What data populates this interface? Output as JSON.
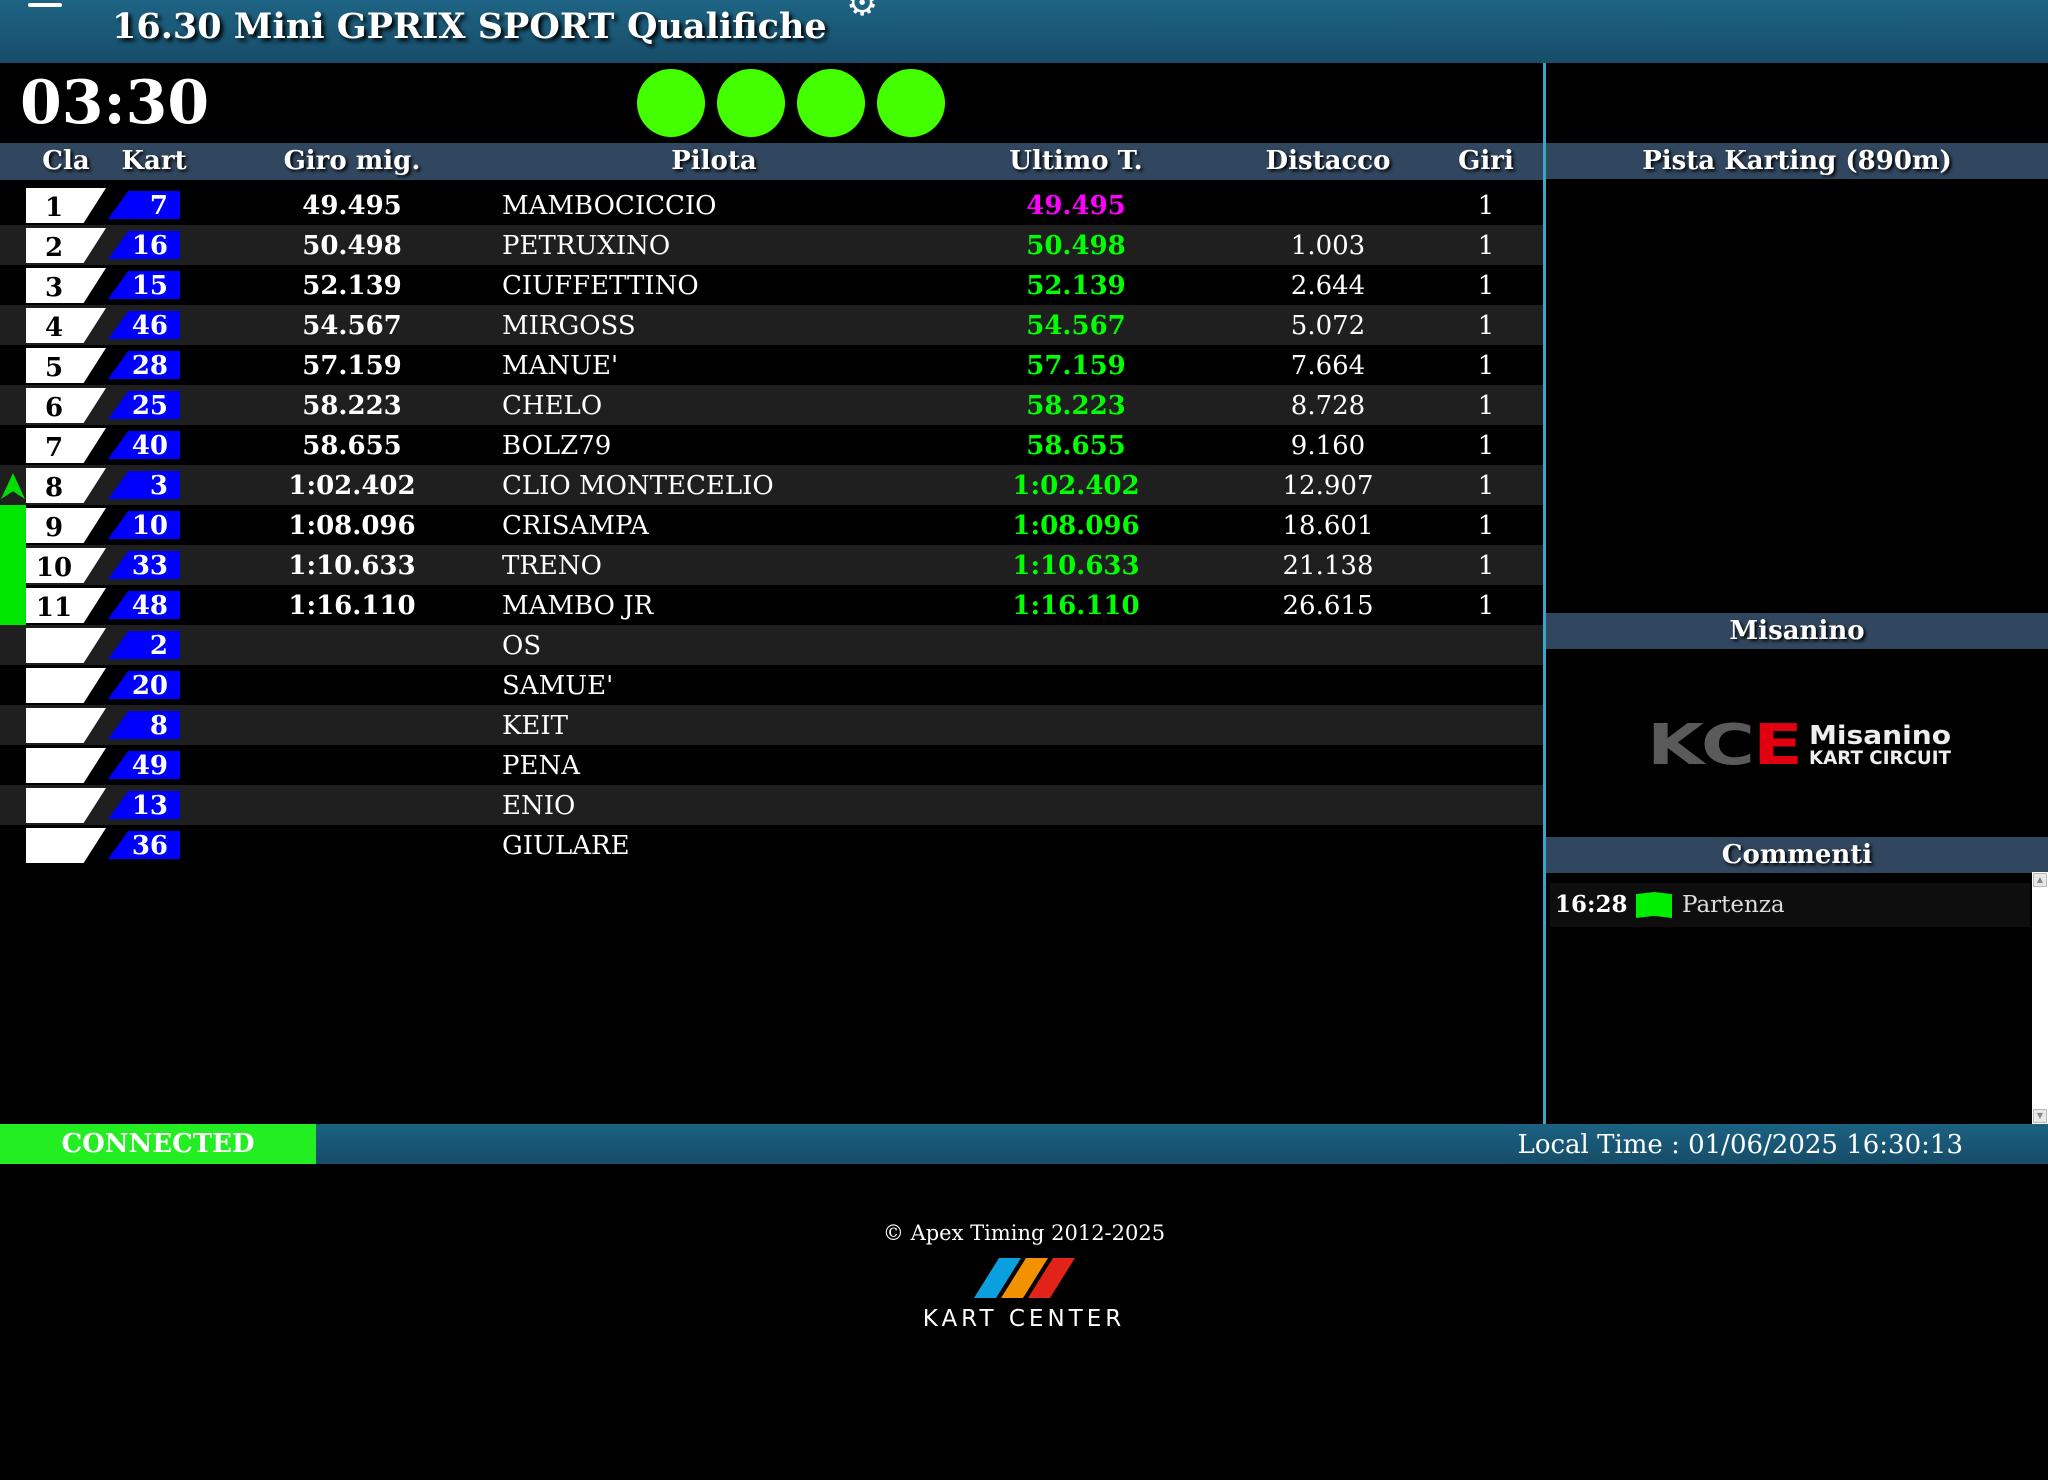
{
  "header": {
    "title": "16.30 Mini GPRIX SPORT",
    "session": "Qualifiche",
    "menu_icon": "hamburger-icon",
    "settings_icon": "gear-icon"
  },
  "timer": "03:30",
  "lights": {
    "count": 4,
    "color": "#44ff00"
  },
  "table": {
    "columns": {
      "cla": "Cla",
      "kart": "Kart",
      "best": "Giro mig.",
      "driver": "Pilota",
      "last": "Ultimo T.",
      "gap": "Distacco",
      "laps": "Giri"
    },
    "rows": [
      {
        "pos": "1",
        "kart": "7",
        "best": "49.495",
        "driver": "MAMBOCICCIO",
        "last": "49.495",
        "last_color": "#ff00ff",
        "gap": "",
        "laps": "1",
        "marker": ""
      },
      {
        "pos": "2",
        "kart": "16",
        "best": "50.498",
        "driver": "PETRUXINO",
        "last": "50.498",
        "last_color": "#00ff00",
        "gap": "1.003",
        "laps": "1",
        "marker": ""
      },
      {
        "pos": "3",
        "kart": "15",
        "best": "52.139",
        "driver": "CIUFFETTINO",
        "last": "52.139",
        "last_color": "#00ff00",
        "gap": "2.644",
        "laps": "1",
        "marker": ""
      },
      {
        "pos": "4",
        "kart": "46",
        "best": "54.567",
        "driver": "MIRGOSS",
        "last": "54.567",
        "last_color": "#00ff00",
        "gap": "5.072",
        "laps": "1",
        "marker": ""
      },
      {
        "pos": "5",
        "kart": "28",
        "best": "57.159",
        "driver": "MANUE'",
        "last": "57.159",
        "last_color": "#00ff00",
        "gap": "7.664",
        "laps": "1",
        "marker": ""
      },
      {
        "pos": "6",
        "kart": "25",
        "best": "58.223",
        "driver": "CHELO",
        "last": "58.223",
        "last_color": "#00ff00",
        "gap": "8.728",
        "laps": "1",
        "marker": ""
      },
      {
        "pos": "7",
        "kart": "40",
        "best": "58.655",
        "driver": "BOLZ79",
        "last": "58.655",
        "last_color": "#00ff00",
        "gap": "9.160",
        "laps": "1",
        "marker": ""
      },
      {
        "pos": "8",
        "kart": "3",
        "best": "1:02.402",
        "driver": "CLIO MONTECELIO",
        "last": "1:02.402",
        "last_color": "#00ff00",
        "gap": "12.907",
        "laps": "1",
        "marker": "up-arrow"
      },
      {
        "pos": "9",
        "kart": "10",
        "best": "1:08.096",
        "driver": "CRISAMPA",
        "last": "1:08.096",
        "last_color": "#00ff00",
        "gap": "18.601",
        "laps": "1",
        "marker": "green-bar"
      },
      {
        "pos": "10",
        "kart": "33",
        "best": "1:10.633",
        "driver": "TRENO",
        "last": "1:10.633",
        "last_color": "#00ff00",
        "gap": "21.138",
        "laps": "1",
        "marker": "green-bar"
      },
      {
        "pos": "11",
        "kart": "48",
        "best": "1:16.110",
        "driver": "MAMBO JR",
        "last": "1:16.110",
        "last_color": "#00ff00",
        "gap": "26.615",
        "laps": "1",
        "marker": "green-bar"
      },
      {
        "pos": "",
        "kart": "2",
        "best": "",
        "driver": "OS",
        "last": "",
        "last_color": "#00ff00",
        "gap": "",
        "laps": "",
        "marker": ""
      },
      {
        "pos": "",
        "kart": "20",
        "best": "",
        "driver": "SAMUE'",
        "last": "",
        "last_color": "#00ff00",
        "gap": "",
        "laps": "",
        "marker": ""
      },
      {
        "pos": "",
        "kart": "8",
        "best": "",
        "driver": "KEIT",
        "last": "",
        "last_color": "#00ff00",
        "gap": "",
        "laps": "",
        "marker": ""
      },
      {
        "pos": "",
        "kart": "49",
        "best": "",
        "driver": "PENA",
        "last": "",
        "last_color": "#00ff00",
        "gap": "",
        "laps": "",
        "marker": ""
      },
      {
        "pos": "",
        "kart": "13",
        "best": "",
        "driver": "ENIO",
        "last": "",
        "last_color": "#00ff00",
        "gap": "",
        "laps": "",
        "marker": ""
      },
      {
        "pos": "",
        "kart": "36",
        "best": "",
        "driver": "GIULARE",
        "last": "",
        "last_color": "#00ff00",
        "gap": "",
        "laps": "",
        "marker": ""
      }
    ]
  },
  "right_panel": {
    "track_title": "Pista Karting (890m)",
    "venue_title": "Misanino",
    "venue_logo": {
      "mark": "KCE",
      "name": "Misanino",
      "sub": "KART CIRCUIT"
    },
    "comments_title": "Commenti",
    "comments": [
      {
        "time": "16:28",
        "flag": "green-flag-icon",
        "text": "Partenza"
      }
    ]
  },
  "status": {
    "connection": "CONNECTED",
    "local_time": "Local Time : 01/06/2025 16:30:13"
  },
  "footer": {
    "copyright": "© Apex Timing 2012-2025",
    "logo_text": "KART CENTER"
  }
}
